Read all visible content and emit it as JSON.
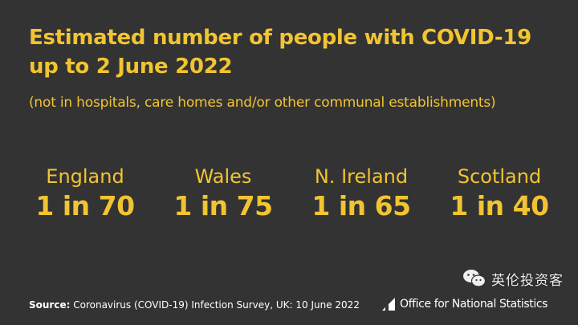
{
  "title": "Estimated number of people with COVID-19 up to 2 June 2022",
  "subtitle": "(not in hospitals, care homes and/or other communal establishments)",
  "stats": [
    {
      "region": "England",
      "value": "1 in 70"
    },
    {
      "region": "Wales",
      "value": "1 in 75"
    },
    {
      "region": "N. Ireland",
      "value": "1 in 65"
    },
    {
      "region": "Scotland",
      "value": "1 in 40"
    }
  ],
  "source": {
    "label": "Source:",
    "text": "Coronavirus (COVID-19) Infection Survey, UK: 10 June 2022"
  },
  "logo": {
    "text": "Office for National Statistics",
    "icon": "ons-logo-icon"
  },
  "watermark": {
    "text": "英伦投资客",
    "icon": "wechat-icon"
  },
  "colors": {
    "background": "#333333",
    "accent": "#f2c431",
    "text": "#ffffff"
  }
}
